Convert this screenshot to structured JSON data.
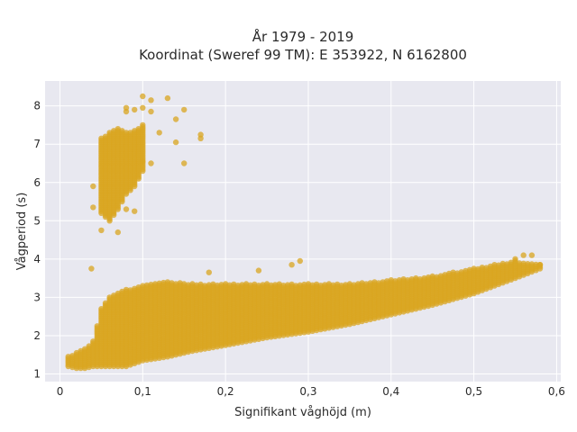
{
  "chart_data": {
    "type": "scatter",
    "title_line1": "År 1979 - 2019",
    "title_line2": "Koordinat (Sweref 99 TM): E 353922, N 6162800",
    "xlabel": "Signifikant våghöjd (m)",
    "ylabel": "Vågperiod (s)",
    "xlim": [
      -0.018,
      0.605
    ],
    "ylim": [
      0.8,
      8.65
    ],
    "x_ticks": [
      0,
      0.1,
      0.2,
      0.3,
      0.4,
      0.5,
      0.6
    ],
    "x_tick_labels": [
      "0",
      "0,1",
      "0,2",
      "0,3",
      "0,4",
      "0,5",
      "0,6"
    ],
    "y_ticks": [
      1,
      2,
      3,
      4,
      5,
      6,
      7,
      8
    ],
    "y_tick_labels": [
      "1",
      "2",
      "3",
      "4",
      "5",
      "6",
      "7",
      "8"
    ],
    "grid": true,
    "x_step": 0.005,
    "y_step": 0.05,
    "marker_color": "#D9A520",
    "plot_background": "#E8E8F0",
    "main_band": {
      "x": [
        0.01,
        0.02,
        0.03,
        0.04,
        0.05,
        0.06,
        0.08,
        0.1,
        0.13,
        0.16,
        0.2,
        0.25,
        0.3,
        0.35,
        0.4,
        0.45,
        0.5,
        0.55,
        0.58
      ],
      "y_low": [
        1.2,
        1.15,
        1.15,
        1.2,
        1.2,
        1.2,
        1.2,
        1.35,
        1.45,
        1.6,
        1.75,
        1.95,
        2.1,
        2.3,
        2.55,
        2.8,
        3.1,
        3.5,
        3.75
      ],
      "y_high": [
        1.45,
        1.55,
        1.65,
        1.85,
        2.7,
        3.0,
        3.2,
        3.3,
        3.4,
        3.35,
        3.35,
        3.35,
        3.35,
        3.35,
        3.45,
        3.55,
        3.75,
        3.95,
        3.85
      ]
    },
    "swell_band": {
      "x": [
        0.05,
        0.06,
        0.07,
        0.08,
        0.09,
        0.1
      ],
      "y_low": [
        5.2,
        5.0,
        5.3,
        5.7,
        5.9,
        6.3
      ],
      "y_high": [
        7.15,
        7.3,
        7.4,
        7.3,
        7.35,
        7.5
      ]
    },
    "extra_points": [
      [
        0.038,
        3.75
      ],
      [
        0.04,
        5.9
      ],
      [
        0.04,
        5.35
      ],
      [
        0.05,
        4.75
      ],
      [
        0.07,
        4.7
      ],
      [
        0.08,
        7.85
      ],
      [
        0.08,
        7.95
      ],
      [
        0.08,
        5.3
      ],
      [
        0.09,
        7.9
      ],
      [
        0.09,
        5.25
      ],
      [
        0.1,
        8.25
      ],
      [
        0.1,
        7.95
      ],
      [
        0.1,
        6.55
      ],
      [
        0.11,
        8.15
      ],
      [
        0.11,
        7.85
      ],
      [
        0.11,
        6.5
      ],
      [
        0.12,
        7.3
      ],
      [
        0.13,
        8.2
      ],
      [
        0.14,
        7.65
      ],
      [
        0.14,
        7.05
      ],
      [
        0.15,
        7.9
      ],
      [
        0.15,
        6.5
      ],
      [
        0.17,
        7.25
      ],
      [
        0.17,
        7.15
      ],
      [
        0.18,
        3.65
      ],
      [
        0.28,
        3.85
      ],
      [
        0.29,
        3.95
      ],
      [
        0.24,
        3.7
      ],
      [
        0.56,
        4.1
      ],
      [
        0.57,
        4.1
      ],
      [
        0.55,
        4.0
      ],
      [
        0.58,
        3.85
      ]
    ]
  }
}
